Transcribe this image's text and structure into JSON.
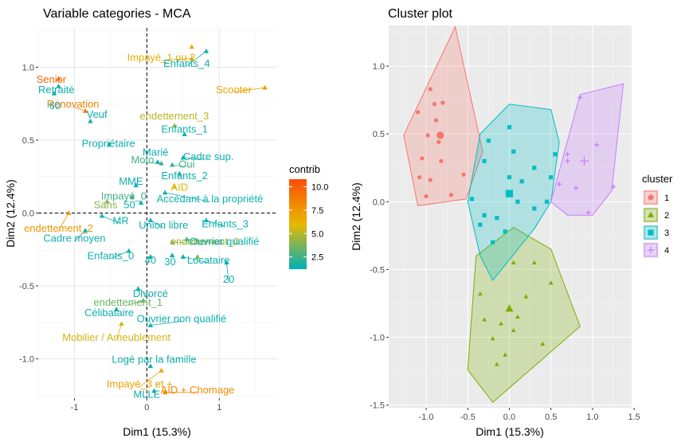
{
  "chart_data": [
    {
      "type": "scatter",
      "title": "Variable categories - MCA",
      "xlabel": "Dim1 (15.3%)",
      "ylabel": "Dim2 (12.4%)",
      "xlim": [
        -1.5,
        1.8
      ],
      "ylim": [
        -1.27,
        1.27
      ],
      "x_ticks": [
        -1,
        0,
        1
      ],
      "x_tick_labels": [
        "-1",
        "0",
        "1"
      ],
      "y_ticks": [
        -1.0,
        -0.5,
        0.0,
        0.5,
        1.0
      ],
      "y_tick_labels": [
        "-1.0",
        "-0.5",
        "0.0",
        "0.5",
        "1.0"
      ],
      "grid": true,
      "background": "#ffffff",
      "reference_lines": {
        "x": 0,
        "y": 0,
        "style": "dashed"
      },
      "color_variable": "contrib",
      "legend": {
        "title": "contrib",
        "placement": "right",
        "ticks": [
          "10.0",
          "7.5",
          "5.0",
          "2.5"
        ],
        "tick_values": [
          10.0,
          7.5,
          5.0,
          2.5
        ],
        "range": [
          1.2,
          10.8
        ],
        "colors": [
          "#00AFBB",
          "#E7B800",
          "#FC4E07"
        ]
      },
      "points": [
        {
          "label": "Impayé_1 ou 2",
          "x": 0.62,
          "y": 1.06,
          "lx": 0.2,
          "ly": 1.07,
          "contrib": 6.5
        },
        {
          "label": "",
          "x": 0.62,
          "y": 1.14,
          "contrib": 6.5
        },
        {
          "label": "Enfants_4",
          "x": 0.82,
          "y": 1.11,
          "lx": 0.55,
          "ly": 1.03,
          "contrib": 1.5
        },
        {
          "label": "Scooter",
          "x": 1.63,
          "y": 0.86,
          "lx": 1.2,
          "ly": 0.85,
          "contrib": 7.0
        },
        {
          "label": "Senior",
          "x": -1.22,
          "y": 0.92,
          "lx": -1.32,
          "ly": 0.92,
          "contrib": 9.5
        },
        {
          "label": "Retraité",
          "x": -1.22,
          "y": 0.87,
          "lx": -1.25,
          "ly": 0.85,
          "contrib": 1.5
        },
        {
          "label": "Rénovation",
          "x": -0.85,
          "y": 0.7,
          "lx": -1.02,
          "ly": 0.75,
          "contrib": 8.5
        },
        {
          "label": "Veuf",
          "x": -0.78,
          "y": 0.63,
          "lx": -0.69,
          "ly": 0.68,
          "contrib": 1.5
        },
        {
          "label": "60",
          "x": -1.28,
          "y": 0.82,
          "lx": -1.27,
          "ly": 0.74,
          "contrib": 1.5
        },
        {
          "label": "endettement_3",
          "x": 0.38,
          "y": 0.6,
          "lx": 0.38,
          "ly": 0.67,
          "contrib": 5.0
        },
        {
          "label": "Enfants_1",
          "x": 0.52,
          "y": 0.54,
          "lx": 0.52,
          "ly": 0.58,
          "contrib": 1.5
        },
        {
          "label": "Propriétaire",
          "x": -0.52,
          "y": 0.47,
          "lx": -0.53,
          "ly": 0.48,
          "contrib": 1.5
        },
        {
          "label": "Marié",
          "x": 0.15,
          "y": 0.35,
          "lx": 0.12,
          "ly": 0.42,
          "contrib": 1.5
        },
        {
          "label": "Cadre sup.",
          "x": 0.5,
          "y": 0.38,
          "lx": 0.85,
          "ly": 0.39,
          "contrib": 1.5
        },
        {
          "label": "Moto",
          "x": 0.2,
          "y": 0.34,
          "lx": -0.06,
          "ly": 0.37,
          "contrib": 2.5
        },
        {
          "label": "Oui",
          "x": 0.35,
          "y": 0.33,
          "lx": 0.55,
          "ly": 0.34,
          "contrib": 2.5
        },
        {
          "label": "Enfants_2",
          "x": 0.45,
          "y": 0.27,
          "lx": 0.52,
          "ly": 0.26,
          "contrib": 1.5
        },
        {
          "label": "AID",
          "x": 0.38,
          "y": 0.18,
          "lx": 0.45,
          "ly": 0.18,
          "contrib": 6.0
        },
        {
          "label": "MME",
          "x": -0.15,
          "y": 0.19,
          "lx": -0.22,
          "ly": 0.22,
          "contrib": 1.5
        },
        {
          "label": "Impayé_0",
          "x": -0.2,
          "y": 0.11,
          "lx": -0.32,
          "ly": 0.12,
          "contrib": 2.5
        },
        {
          "label": "50",
          "x": -0.08,
          "y": 0.07,
          "lx": -0.24,
          "ly": 0.06,
          "contrib": 1.5
        },
        {
          "label": "Accédant à la propriété",
          "x": 0.25,
          "y": 0.14,
          "lx": 0.87,
          "ly": 0.1,
          "contrib": 1.5
        },
        {
          "label": "Sans",
          "x": -0.55,
          "y": 0.08,
          "lx": -0.57,
          "ly": 0.06,
          "contrib": 4.0
        },
        {
          "label": "endettement_2",
          "x": -1.08,
          "y": 0.0,
          "lx": -1.22,
          "ly": -0.1,
          "contrib": 7.5
        },
        {
          "label": "MR",
          "x": -0.62,
          "y": -0.02,
          "lx": -0.36,
          "ly": -0.05,
          "contrib": 1.5
        },
        {
          "label": "Union libre",
          "x": 0.05,
          "y": -0.05,
          "lx": 0.23,
          "ly": -0.08,
          "contrib": 1.5
        },
        {
          "label": "Enfants_3",
          "x": 0.82,
          "y": -0.05,
          "lx": 1.08,
          "ly": -0.07,
          "contrib": 1.5
        },
        {
          "label": "Cadre moyen",
          "x": -0.85,
          "y": -0.12,
          "lx": -1.0,
          "ly": -0.17,
          "contrib": 1.5
        },
        {
          "label": "endettement_0",
          "x": 0.35,
          "y": -0.2,
          "lx": 0.8,
          "ly": -0.19,
          "contrib": 4.5
        },
        {
          "label": "Ouvrier qualifié",
          "x": 0.55,
          "y": -0.18,
          "lx": 1.07,
          "ly": -0.19,
          "contrib": 1.5
        },
        {
          "label": "Enfants_0",
          "x": -0.25,
          "y": -0.26,
          "lx": -0.5,
          "ly": -0.29,
          "contrib": 1.5
        },
        {
          "label": "40",
          "x": 0.05,
          "y": -0.3,
          "lx": 0.05,
          "ly": -0.32,
          "contrib": 1.5
        },
        {
          "label": "30",
          "x": 0.35,
          "y": -0.29,
          "lx": 0.32,
          "ly": -0.33,
          "contrib": 1.5
        },
        {
          "label": "Locataire",
          "x": 0.5,
          "y": -0.3,
          "lx": 0.85,
          "ly": -0.32,
          "contrib": 1.5
        },
        {
          "label": "",
          "x": 0.7,
          "y": -0.3,
          "contrib": 4.0
        },
        {
          "label": "20",
          "x": 1.1,
          "y": -0.34,
          "lx": 1.13,
          "ly": -0.45,
          "contrib": 1.5
        },
        {
          "label": "Divorcé",
          "x": -0.12,
          "y": -0.52,
          "lx": 0.05,
          "ly": -0.55,
          "contrib": 1.5
        },
        {
          "label": "endettement_1",
          "x": -0.05,
          "y": -0.6,
          "lx": -0.26,
          "ly": -0.61,
          "contrib": 3.5
        },
        {
          "label": "Célibataire",
          "x": -0.42,
          "y": -0.66,
          "lx": -0.52,
          "ly": -0.68,
          "contrib": 1.5
        },
        {
          "label": "Ouvrier non qualifié",
          "x": 0.05,
          "y": -0.77,
          "lx": 0.48,
          "ly": -0.72,
          "contrib": 1.5
        },
        {
          "label": "Mobilier / Ameublement",
          "x": -0.35,
          "y": -0.76,
          "lx": -0.42,
          "ly": -0.85,
          "contrib": 5.5
        },
        {
          "label": "Logé par la famille",
          "x": 0.05,
          "y": -1.05,
          "lx": 0.1,
          "ly": -1.0,
          "contrib": 1.5
        },
        {
          "label": "Impayé_3 et +",
          "x": 0.2,
          "y": -1.08,
          "lx": -0.1,
          "ly": -1.17,
          "contrib": 7.0
        },
        {
          "label": "MLLE",
          "x": 0.1,
          "y": -1.22,
          "lx": 0.0,
          "ly": -1.24,
          "contrib": 1.5
        },
        {
          "label": "AID + Chomage",
          "x": 0.25,
          "y": -1.23,
          "lx": 0.7,
          "ly": -1.21,
          "contrib": 8.0
        }
      ]
    },
    {
      "type": "scatter",
      "title": "Cluster plot",
      "xlabel": "Dim1 (15.3%)",
      "ylabel": "Dim2 (12.4%)",
      "xlim": [
        -1.45,
        1.47
      ],
      "ylim": [
        -1.52,
        1.3
      ],
      "x_ticks": [
        -1.0,
        -0.5,
        0.0,
        0.5,
        1.0,
        1.5
      ],
      "x_tick_labels": [
        "-1.0",
        "-0.5",
        "0.0",
        "0.5",
        "1.0",
        "1.5"
      ],
      "y_ticks": [
        -1.5,
        -1.0,
        -0.5,
        0.0,
        0.5,
        1.0
      ],
      "y_tick_labels": [
        "-1.5",
        "-1.0",
        "-0.5",
        "0.0",
        "0.5",
        "1.0"
      ],
      "grid": true,
      "background": "#ebebeb",
      "legend": {
        "title": "cluster",
        "placement": "right",
        "entries": [
          "1",
          "2",
          "3",
          "4"
        ]
      },
      "series": [
        {
          "name": "1",
          "color": "#F8766D",
          "shape": "circle",
          "hull": [
            [
              -1.27,
              0.49
            ],
            [
              -0.65,
              1.29
            ],
            [
              -0.5,
              0.87
            ],
            [
              -0.32,
              0.37
            ],
            [
              -0.52,
              0.02
            ],
            [
              -1.1,
              -0.03
            ]
          ],
          "points": [
            [
              -0.95,
              0.83
            ],
            [
              -0.8,
              0.73
            ],
            [
              -0.9,
              0.72
            ],
            [
              -1.1,
              0.66
            ],
            [
              -0.88,
              0.6
            ],
            [
              -0.98,
              0.49
            ],
            [
              -0.85,
              0.44
            ],
            [
              -1.05,
              0.32
            ],
            [
              -0.82,
              0.3
            ],
            [
              -0.95,
              0.16
            ],
            [
              -1.08,
              0.18
            ],
            [
              -1.0,
              0.04
            ],
            [
              -0.7,
              0.05
            ],
            [
              -0.55,
              0.2
            ]
          ],
          "centroid": [
            -0.83,
            0.49
          ]
        },
        {
          "name": "2",
          "color": "#7CAE00",
          "shape": "triangle",
          "hull": [
            [
              -0.5,
              -1.24
            ],
            [
              -0.2,
              -1.48
            ],
            [
              0.85,
              -0.92
            ],
            [
              0.5,
              -0.35
            ],
            [
              0.05,
              -0.19
            ],
            [
              -0.4,
              -0.4
            ]
          ],
          "points": [
            [
              -0.35,
              -0.68
            ],
            [
              -0.3,
              -0.87
            ],
            [
              -0.2,
              -1.01
            ],
            [
              -0.05,
              -1.13
            ],
            [
              0.05,
              -0.95
            ],
            [
              0.1,
              -0.85
            ],
            [
              -0.1,
              -0.9
            ],
            [
              0.2,
              -0.7
            ],
            [
              0.4,
              -1.05
            ],
            [
              0.5,
              -0.6
            ],
            [
              0.3,
              -0.45
            ],
            [
              -0.15,
              -1.2
            ],
            [
              0.05,
              -0.45
            ]
          ],
          "centroid": [
            0.0,
            -0.79
          ]
        },
        {
          "name": "3",
          "color": "#00BFC4",
          "shape": "square",
          "hull": [
            [
              -0.5,
              0.0
            ],
            [
              -0.35,
              0.5
            ],
            [
              0.0,
              0.72
            ],
            [
              0.5,
              0.68
            ],
            [
              0.6,
              0.44
            ],
            [
              0.5,
              0.0
            ],
            [
              0.3,
              -0.2
            ],
            [
              -0.2,
              -0.58
            ],
            [
              -0.35,
              -0.4
            ]
          ],
          "points": [
            [
              -0.45,
              0.02
            ],
            [
              -0.3,
              0.3
            ],
            [
              -0.25,
              0.45
            ],
            [
              0.0,
              0.55
            ],
            [
              0.05,
              0.37
            ],
            [
              0.0,
              0.18
            ],
            [
              0.15,
              0.15
            ],
            [
              0.3,
              0.25
            ],
            [
              0.5,
              0.18
            ],
            [
              0.55,
              0.35
            ],
            [
              -0.35,
              -0.17
            ],
            [
              -0.2,
              -0.3
            ],
            [
              0.1,
              0.0
            ],
            [
              0.3,
              -0.05
            ],
            [
              -0.15,
              -0.12
            ],
            [
              -0.3,
              -0.1
            ],
            [
              0.45,
              0.0
            ],
            [
              -0.05,
              -0.22
            ]
          ],
          "centroid": [
            0.0,
            0.06
          ]
        },
        {
          "name": "4",
          "color": "#C77CFF",
          "shape": "cross",
          "hull": [
            [
              0.5,
              0.0
            ],
            [
              0.85,
              0.79
            ],
            [
              1.37,
              0.87
            ],
            [
              1.23,
              0.08
            ],
            [
              1.0,
              -0.1
            ],
            [
              0.7,
              -0.1
            ]
          ],
          "points": [
            [
              0.85,
              0.77
            ],
            [
              1.05,
              0.42
            ],
            [
              0.7,
              0.35
            ],
            [
              1.25,
              0.11
            ],
            [
              0.95,
              -0.08
            ],
            [
              0.8,
              0.1
            ],
            [
              0.6,
              0.13
            ],
            [
              0.7,
              0.3
            ]
          ],
          "centroid": [
            0.9,
            0.3
          ]
        }
      ]
    }
  ]
}
